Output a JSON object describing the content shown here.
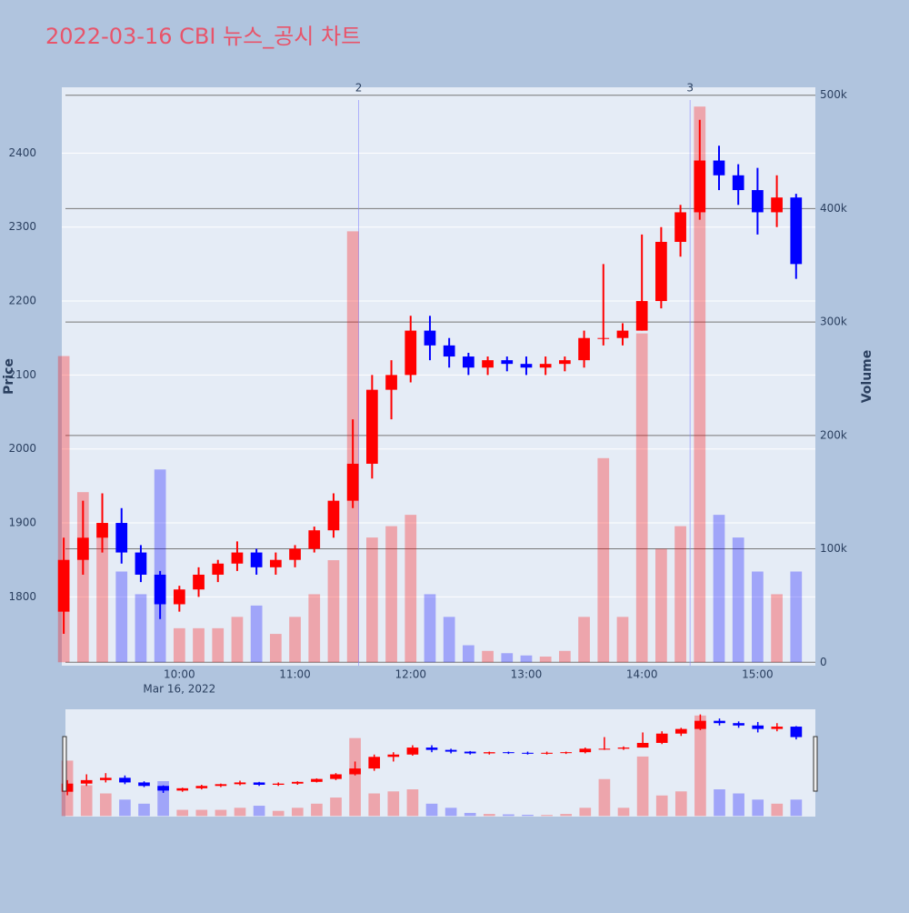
{
  "chart_data": {
    "type": "candlestick",
    "title": "2022-03-16 CBI 뉴스_공시 차트",
    "y_label": "Price",
    "y2_label": "Volume",
    "increasing_color": "#ff0000",
    "decreasing_color": "#0000ff",
    "x": [
      "09:00",
      "09:10",
      "09:20",
      "09:30",
      "09:40",
      "09:50",
      "10:00",
      "10:10",
      "10:20",
      "10:30",
      "10:40",
      "10:50",
      "11:00",
      "11:10",
      "11:20",
      "11:30",
      "11:40",
      "11:50",
      "12:00",
      "12:10",
      "12:20",
      "12:30",
      "12:40",
      "12:50",
      "13:00",
      "13:10",
      "13:20",
      "13:30",
      "13:40",
      "13:50",
      "14:00",
      "14:10",
      "14:20",
      "14:30",
      "14:40",
      "14:50",
      "15:00",
      "15:10",
      "15:20"
    ],
    "open": [
      1780,
      1850,
      1880,
      1900,
      1860,
      1830,
      1790,
      1810,
      1830,
      1845,
      1860,
      1840,
      1850,
      1865,
      1890,
      1930,
      1980,
      2080,
      2100,
      2160,
      2140,
      2125,
      2110,
      2120,
      2115,
      2110,
      2115,
      2120,
      2150,
      2150,
      2160,
      2200,
      2280,
      2320,
      2390,
      2370,
      2350,
      2320,
      2340
    ],
    "high": [
      1880,
      1930,
      1940,
      1920,
      1870,
      1835,
      1815,
      1840,
      1850,
      1875,
      1865,
      1860,
      1870,
      1895,
      1940,
      2040,
      2100,
      2120,
      2180,
      2180,
      2150,
      2130,
      2125,
      2125,
      2125,
      2125,
      2125,
      2160,
      2250,
      2170,
      2290,
      2300,
      2330,
      2445,
      2410,
      2385,
      2380,
      2370,
      2345
    ],
    "low": [
      1750,
      1830,
      1860,
      1845,
      1820,
      1770,
      1780,
      1800,
      1820,
      1835,
      1830,
      1830,
      1840,
      1860,
      1880,
      1920,
      1960,
      2040,
      2090,
      2120,
      2110,
      2100,
      2100,
      2105,
      2100,
      2100,
      2105,
      2110,
      2140,
      2140,
      2160,
      2190,
      2260,
      2310,
      2350,
      2330,
      2290,
      2300,
      2230
    ],
    "close": [
      1850,
      1880,
      1900,
      1860,
      1830,
      1790,
      1810,
      1830,
      1845,
      1860,
      1840,
      1850,
      1865,
      1890,
      1930,
      1980,
      2080,
      2100,
      2160,
      2140,
      2125,
      2110,
      2120,
      2115,
      2110,
      2115,
      2120,
      2150,
      2150,
      2160,
      2200,
      2280,
      2320,
      2390,
      2370,
      2350,
      2320,
      2340,
      2250
    ],
    "volume": {
      "axis": "y2",
      "values": [
        270000,
        150000,
        110000,
        80000,
        60000,
        170000,
        30000,
        30000,
        30000,
        40000,
        50000,
        25000,
        40000,
        60000,
        90000,
        380000,
        110000,
        120000,
        130000,
        60000,
        40000,
        15000,
        10000,
        8000,
        6000,
        5000,
        10000,
        40000,
        180000,
        40000,
        290000,
        100000,
        120000,
        490000,
        130000,
        110000,
        80000,
        60000,
        80000
      ]
    },
    "xlim": [
      "08:59",
      "15:30"
    ],
    "xticks": [
      "10:00",
      "11:00",
      "12:00",
      "13:00",
      "14:00",
      "15:00"
    ],
    "date_label": "Mar 16, 2022",
    "ylim": [
      1707,
      2489
    ],
    "yticks": [
      1800,
      1900,
      2000,
      2100,
      2200,
      2300,
      2400
    ],
    "y2lim": [
      -3000,
      507000
    ],
    "y2ticks": [
      {
        "value": 0,
        "label": "0"
      },
      {
        "value": 100000,
        "label": "100k"
      },
      {
        "value": 200000,
        "label": "200k"
      },
      {
        "value": 300000,
        "label": "300k"
      },
      {
        "value": 400000,
        "label": "400k"
      },
      {
        "value": 500000,
        "label": "500k"
      }
    ],
    "annotations": [
      {
        "x": "11:33",
        "text": "2"
      },
      {
        "x": "14:25",
        "text": "3"
      }
    ],
    "grid": true,
    "rangeslider": true
  }
}
